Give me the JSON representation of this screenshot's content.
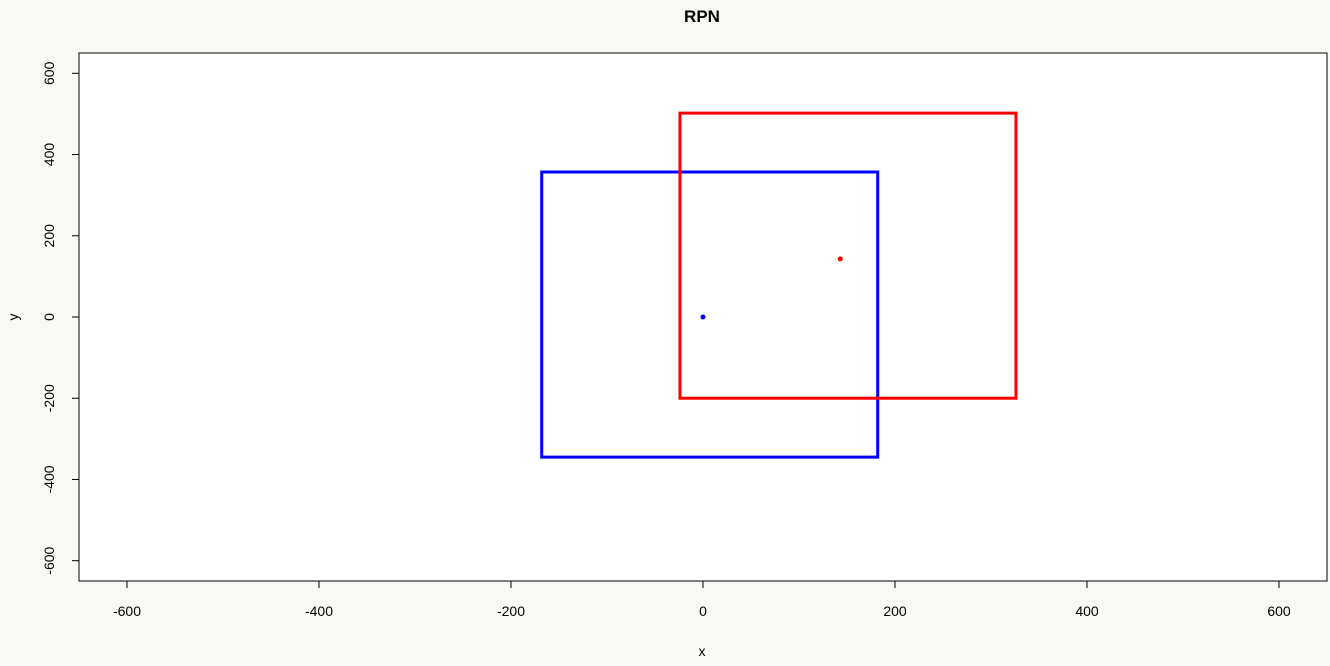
{
  "chart_data": {
    "type": "scatter",
    "title": "RPN",
    "xlabel": "x",
    "ylabel": "y",
    "xlim": [
      -650,
      650
    ],
    "ylim": [
      -650,
      650
    ],
    "x_ticks": [
      -600,
      -400,
      -200,
      0,
      200,
      400,
      600
    ],
    "y_ticks": [
      -600,
      -400,
      -200,
      0,
      200,
      400,
      600
    ],
    "grid": false,
    "rectangles": [
      {
        "color": "#0000ff",
        "xmin": -168,
        "xmax": 182,
        "ymin": -345,
        "ymax": 357
      },
      {
        "color": "#ff0000",
        "xmin": -24,
        "xmax": 326,
        "ymin": -200,
        "ymax": 502
      }
    ],
    "points": [
      {
        "color": "#0000ff",
        "x": 0,
        "y": 0
      },
      {
        "color": "#ff0000",
        "x": 143,
        "y": 143
      }
    ]
  }
}
